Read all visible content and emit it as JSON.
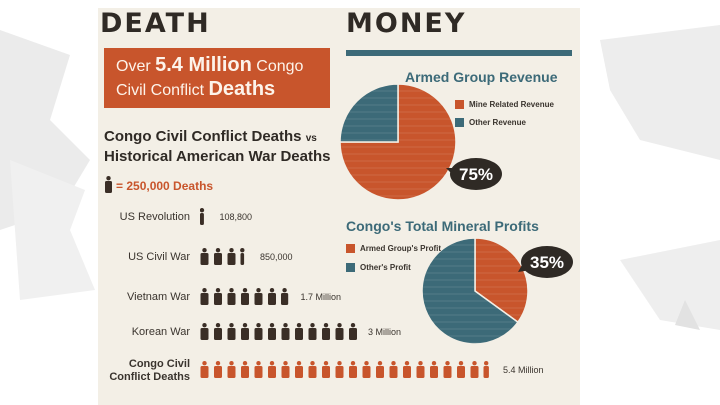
{
  "death_header": "DEATH",
  "money_header": "MONEY",
  "death_box": {
    "prefix": "Over ",
    "highlight": "5.4 Million",
    "mid": " Congo Civil Conflict ",
    "bold_end": "Deaths"
  },
  "comparison": {
    "title_line1": "Congo Civil Conflict Deaths",
    "title_vs": "vs",
    "title_line2": "Historical American War Deaths",
    "key": "= 250,000 Deaths"
  },
  "armed_group_title": "Armed Group Revenue",
  "minerals_title": "Congo's Total Mineral Profits",
  "colors": {
    "orange": "#c8552c",
    "teal": "#3c6a78",
    "dark": "#3a2e26",
    "panel": "#f3efe6"
  },
  "chart_data": [
    {
      "type": "bar",
      "title": "Congo Civil Conflict Deaths vs Historical American War Deaths",
      "unit_per_icon": 250000,
      "categories": [
        "US Revolution",
        "US Civil War",
        "Vietnam War",
        "Korean War",
        "Congo Civil Conflict Deaths"
      ],
      "values": [
        108800,
        850000,
        1700000,
        3000000,
        5400000
      ],
      "value_labels": [
        "108,800",
        "850,000",
        "1.7 Million",
        "3 Million",
        "5.4 Million"
      ],
      "highlight_category": "Congo Civil Conflict Deaths"
    },
    {
      "type": "pie",
      "title": "Armed Group Revenue",
      "labels": [
        "Mine Related Revenue",
        "Other Revenue"
      ],
      "values": [
        75,
        25
      ],
      "colors": [
        "#c8552c",
        "#3c6a78"
      ],
      "callout": "75%"
    },
    {
      "type": "pie",
      "title": "Congo's Total Mineral Profits",
      "labels": [
        "Armed Group's Profit",
        "Other's Profit"
      ],
      "values": [
        35,
        65
      ],
      "colors": [
        "#c8552c",
        "#3c6a78"
      ],
      "callout": "35%"
    }
  ]
}
